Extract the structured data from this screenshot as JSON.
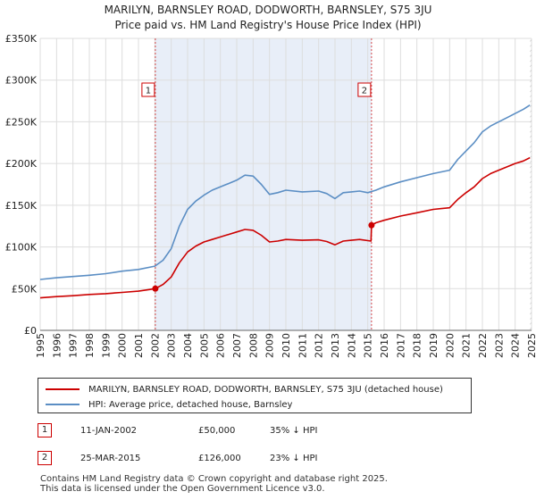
{
  "title": "MARILYN, BARNSLEY ROAD, DODWORTH, BARNSLEY, S75 3JU",
  "subtitle": "Price paid vs. HM Land Registry's House Price Index (HPI)",
  "colors": {
    "property": "#cc0000",
    "hpi": "#5b8ec4",
    "shade": "#e8eef8",
    "grid": "#dddddd"
  },
  "chart_data": {
    "type": "line",
    "xlim": [
      1995,
      2025
    ],
    "ylim": [
      0,
      350000
    ],
    "y_ticks": [
      {
        "value": 0,
        "label": "£0"
      },
      {
        "value": 50000,
        "label": "£50K"
      },
      {
        "value": 100000,
        "label": "£100K"
      },
      {
        "value": 150000,
        "label": "£150K"
      },
      {
        "value": 200000,
        "label": "£200K"
      },
      {
        "value": 250000,
        "label": "£250K"
      },
      {
        "value": 300000,
        "label": "£300K"
      },
      {
        "value": 350000,
        "label": "£350K"
      }
    ],
    "x_ticks": [
      "1995",
      "1996",
      "1997",
      "1998",
      "1999",
      "2000",
      "2001",
      "2002",
      "2003",
      "2004",
      "2005",
      "2006",
      "2007",
      "2008",
      "2009",
      "2010",
      "2011",
      "2012",
      "2013",
      "2014",
      "2015",
      "2016",
      "2017",
      "2018",
      "2019",
      "2020",
      "2021",
      "2022",
      "2023",
      "2024",
      "2025"
    ],
    "shaded_range": [
      2002.03,
      2015.23
    ],
    "series": [
      {
        "name": "HPI: Average price, detached house, Barnsley",
        "color": "#5b8ec4",
        "x": [
          1995,
          1996,
          1997,
          1998,
          1999,
          2000,
          2001,
          2002,
          2002.5,
          2003,
          2003.5,
          2004,
          2004.5,
          2005,
          2005.5,
          2006,
          2006.5,
          2007,
          2007.5,
          2008,
          2008.5,
          2009,
          2009.5,
          2010,
          2011,
          2012,
          2012.5,
          2013,
          2013.5,
          2014,
          2014.5,
          2015,
          2015.5,
          2016,
          2017,
          2018,
          2019,
          2019.5,
          2020,
          2020.5,
          2021,
          2021.5,
          2022,
          2022.5,
          2023,
          2023.5,
          2024,
          2024.5,
          2024.9
        ],
        "values": [
          61000,
          63000,
          64500,
          66000,
          68000,
          71000,
          73000,
          77000,
          84000,
          98000,
          125000,
          145000,
          155000,
          162000,
          168000,
          172000,
          176000,
          180000,
          186000,
          185000,
          175000,
          163000,
          165000,
          168000,
          166000,
          167000,
          164000,
          158000,
          165000,
          166000,
          167000,
          165000,
          168000,
          172000,
          178000,
          183000,
          188000,
          190000,
          192000,
          205000,
          215000,
          225000,
          238000,
          245000,
          250000,
          255000,
          260000,
          265000,
          270000
        ]
      },
      {
        "name": "MARILYN, BARNSLEY ROAD, DODWORTH, BARNSLEY, S75 3JU (detached house)",
        "color": "#cc0000",
        "x": [
          1995,
          1996,
          1997,
          1998,
          1999,
          2000,
          2001,
          2002.03,
          2002.5,
          2003,
          2003.5,
          2004,
          2004.5,
          2005,
          2005.5,
          2006,
          2006.5,
          2007,
          2007.5,
          2008,
          2008.5,
          2009,
          2009.5,
          2010,
          2011,
          2012,
          2012.5,
          2013,
          2013.5,
          2014,
          2014.5,
          2015.2,
          2015.23,
          2015.5,
          2016,
          2017,
          2018,
          2019,
          2019.5,
          2020,
          2020.5,
          2021,
          2021.5,
          2022,
          2022.5,
          2023,
          2023.5,
          2024,
          2024.5,
          2024.9
        ],
        "values": [
          39000,
          40500,
          41500,
          43000,
          44000,
          45500,
          47000,
          50000,
          55000,
          64000,
          81000,
          94000,
          101000,
          106000,
          109000,
          112000,
          115000,
          118000,
          121000,
          120000,
          114000,
          106000,
          107000,
          109000,
          108000,
          108500,
          106500,
          102500,
          107000,
          108000,
          109000,
          107000,
          126000,
          129000,
          132000,
          137000,
          141000,
          145000,
          146000,
          147000,
          157000,
          165000,
          172000,
          182000,
          188000,
          192000,
          196000,
          200000,
          203000,
          207000
        ]
      }
    ],
    "markers": [
      {
        "label": "1",
        "x": 2002.03,
        "value": 50000
      },
      {
        "label": "2",
        "x": 2015.23,
        "value": 126000
      }
    ]
  },
  "legend": {
    "property_label": "MARILYN, BARNSLEY ROAD, DODWORTH, BARNSLEY, S75 3JU (detached house)",
    "hpi_label": "HPI: Average price, detached house, Barnsley"
  },
  "transactions": [
    {
      "num": "1",
      "date": "11-JAN-2002",
      "price": "£50,000",
      "hpi": "35% ↓ HPI"
    },
    {
      "num": "2",
      "date": "25-MAR-2015",
      "price": "£126,000",
      "hpi": "23% ↓ HPI"
    }
  ],
  "footer": {
    "line1": "Contains HM Land Registry data © Crown copyright and database right 2025.",
    "line2": "This data is licensed under the Open Government Licence v3.0."
  }
}
